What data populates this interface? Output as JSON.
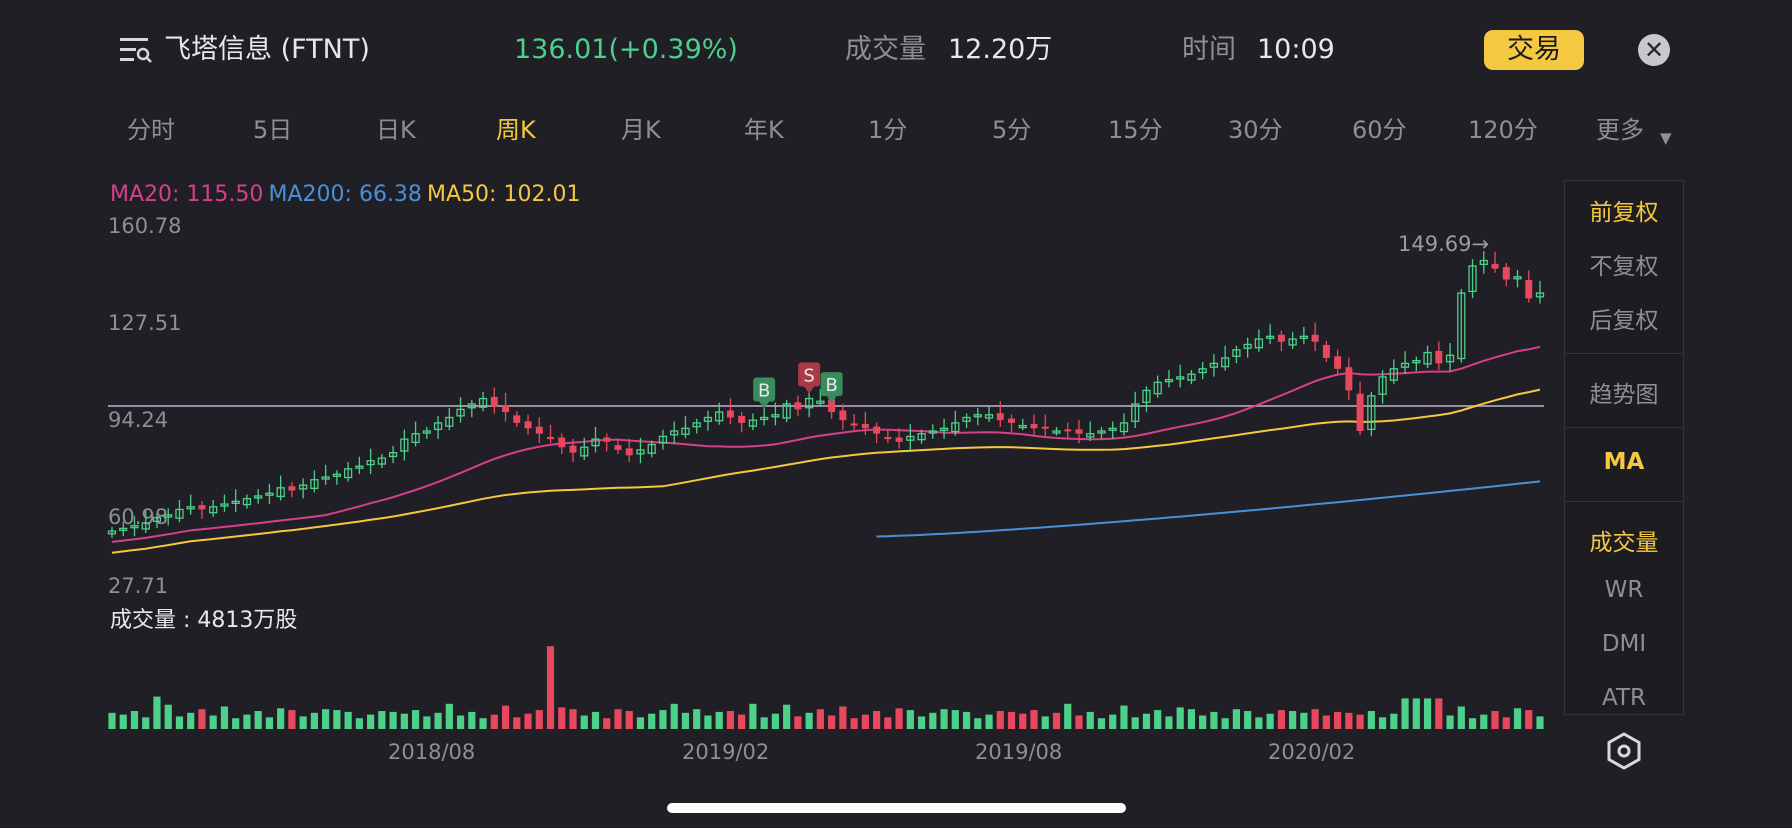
{
  "header": {
    "title": "飞塔信息 (FTNT)",
    "price": "136.01(+0.39%)",
    "volume_label": "成交量",
    "volume_value": "12.20万",
    "time_label": "时间",
    "time_value": "10:09",
    "trade_label": "交易",
    "close_symbol": "✕"
  },
  "tabs": [
    {
      "label": "分时",
      "active": false
    },
    {
      "label": "5日",
      "active": false
    },
    {
      "label": "日K",
      "active": false
    },
    {
      "label": "周K",
      "active": true
    },
    {
      "label": "月K",
      "active": false
    },
    {
      "label": "年K",
      "active": false
    },
    {
      "label": "1分",
      "active": false
    },
    {
      "label": "5分",
      "active": false
    },
    {
      "label": "15分",
      "active": false
    },
    {
      "label": "30分",
      "active": false
    },
    {
      "label": "60分",
      "active": false
    },
    {
      "label": "120分",
      "active": false
    },
    {
      "label": "更多",
      "active": false
    }
  ],
  "more_arrow": "▼",
  "colors": {
    "up": "#4cd08a",
    "down": "#e8485e",
    "ma20": "#d6408a",
    "ma200": "#4a90d9",
    "ma50": "#f5c842",
    "accent": "#f5c842"
  },
  "ma_legend": {
    "ma20": "MA20: 115.50",
    "ma200": "MA200: 66.38",
    "ma50": "MA50: 102.01"
  },
  "volume_legend": "成交量 : 4813万股",
  "markers": {
    "b": "B",
    "s": "S"
  },
  "chart_data": {
    "type": "candlestick",
    "period": "weekly",
    "y_ticks": [
      "160.78",
      "127.51",
      "94.24",
      "60.98",
      "27.71"
    ],
    "ylim": [
      27.71,
      160.78
    ],
    "reference_line": 94.24,
    "x_ticks": [
      "2018/08",
      "2019/02",
      "2019/08",
      "2020/02"
    ],
    "max_annotation": "149.69→",
    "max_value": 149.69,
    "closes": [
      48,
      49,
      50,
      51,
      53,
      54,
      56,
      57,
      56,
      57,
      58,
      59,
      60,
      61,
      62,
      64,
      63,
      65,
      67,
      68,
      69,
      71,
      72,
      74,
      75,
      77,
      82,
      84,
      85,
      88,
      90,
      93,
      95,
      97,
      94,
      92,
      88,
      86,
      84,
      82,
      79,
      77,
      79,
      82,
      81,
      78,
      76,
      78,
      80,
      83,
      85,
      86,
      88,
      90,
      92,
      90,
      88,
      89,
      90,
      91,
      95,
      93,
      97,
      96,
      92,
      89,
      87,
      86,
      84,
      82,
      81,
      83,
      84,
      85,
      86,
      88,
      90,
      91,
      91,
      89,
      88,
      87,
      86,
      86,
      85,
      85,
      84,
      84,
      85,
      86,
      88,
      95,
      100,
      103,
      104,
      105,
      106,
      108,
      110,
      112,
      115,
      117,
      119,
      120,
      118,
      119,
      120,
      118,
      112,
      108,
      100,
      85,
      98,
      105,
      108,
      110,
      111,
      114,
      110,
      113,
      136,
      146,
      148,
      145,
      141,
      142,
      134,
      136
    ],
    "volume_unit": "万股",
    "volume_last": 4813,
    "ma20_last": 115.5,
    "ma200_last": 66.38,
    "ma50_last": 102.01
  },
  "side_panel": {
    "items": [
      {
        "label": "前复权",
        "active": true
      },
      {
        "label": "不复权",
        "active": false
      },
      {
        "label": "后复权",
        "active": false
      },
      {
        "label": "趋势图",
        "active": false
      },
      {
        "label": "MA",
        "active": true
      },
      {
        "label": "成交量",
        "active": true
      },
      {
        "label": "WR",
        "active": false
      },
      {
        "label": "DMI",
        "active": false
      },
      {
        "label": "ATR",
        "active": false
      }
    ]
  },
  "icons": {
    "menu": "menu-search-icon",
    "settings": "hexagon-settings-icon"
  }
}
